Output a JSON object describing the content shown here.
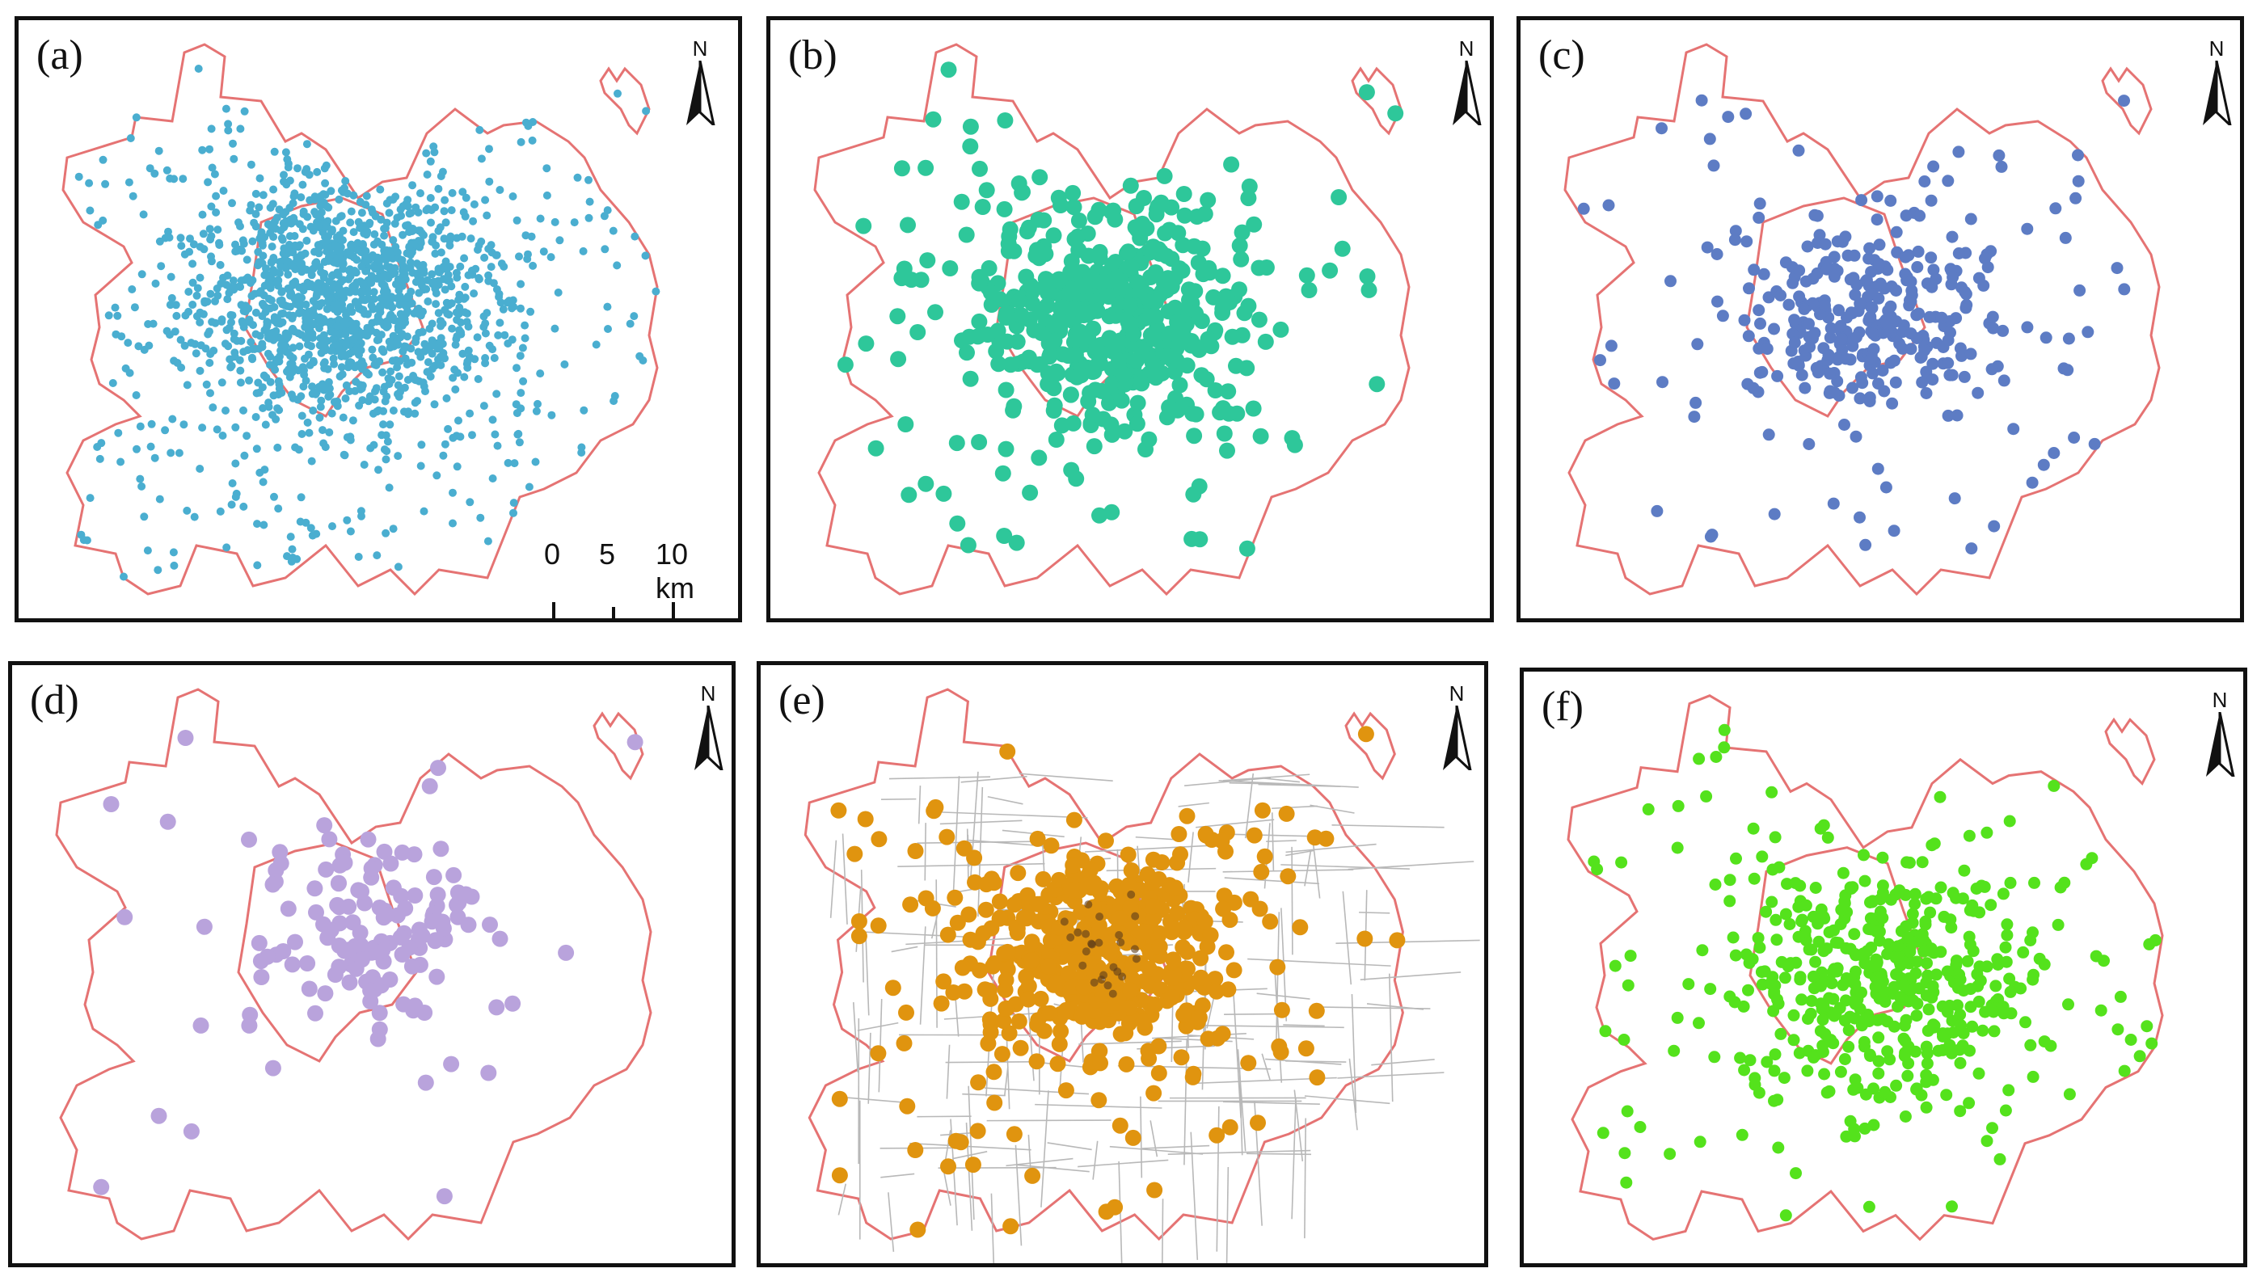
{
  "panels": [
    {
      "id": "a",
      "label": "(a)",
      "dot_color": "#4aaed0",
      "dot_size": "small",
      "density": "very high",
      "north_label": "N"
    },
    {
      "id": "b",
      "label": "(b)",
      "dot_color": "#2ec79a",
      "dot_size": "large",
      "density": "high",
      "north_label": "N"
    },
    {
      "id": "c",
      "label": "(c)",
      "dot_color": "#5d7cc4",
      "dot_size": "medium",
      "density": "medium",
      "north_label": "N"
    },
    {
      "id": "d",
      "label": "(d)",
      "dot_color": "#b9a3dc",
      "dot_size": "large",
      "density": "low",
      "north_label": "N"
    },
    {
      "id": "e",
      "label": "(e)",
      "dot_color": "#e0940f",
      "dot_size": "large",
      "density": "high",
      "road_network": true,
      "north_label": "N"
    },
    {
      "id": "f",
      "label": "(f)",
      "dot_color": "#54e21c",
      "dot_size": "medium",
      "density": "high",
      "north_label": "N"
    }
  ],
  "boundary_color": "#e57373",
  "scalebar": {
    "labels": [
      "0",
      "5",
      "10 km"
    ]
  }
}
